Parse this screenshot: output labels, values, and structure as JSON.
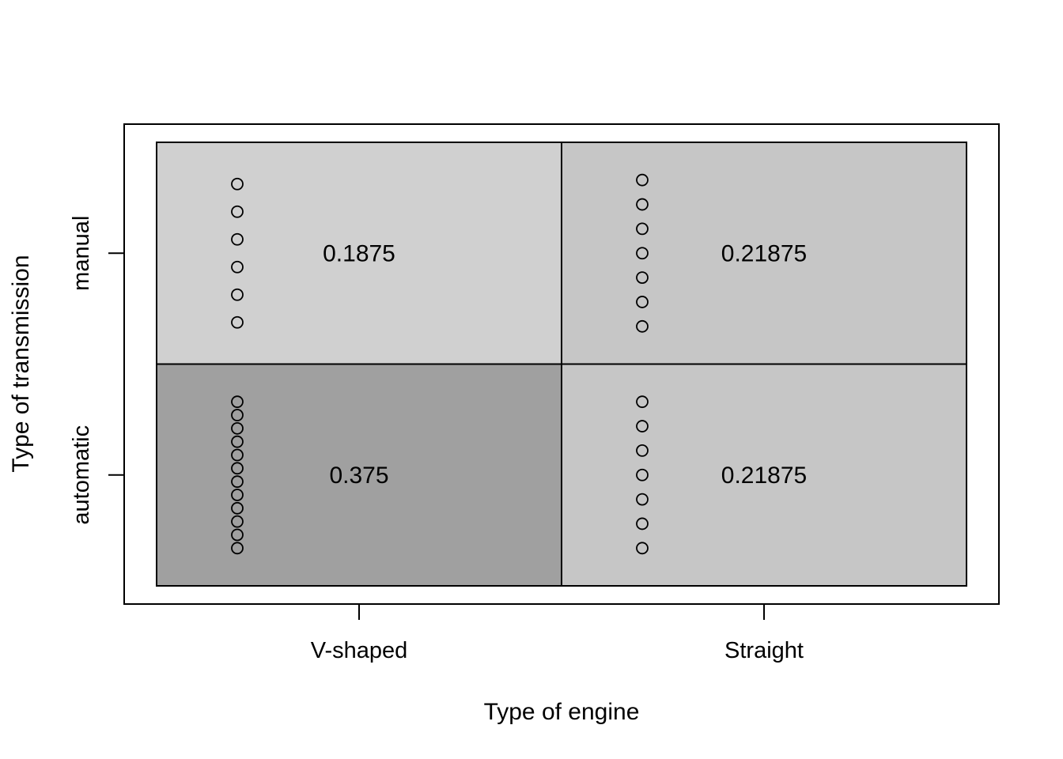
{
  "chart_data": {
    "type": "heatmap",
    "title": "",
    "xlabel": "Type of engine",
    "ylabel": "Type of transmission",
    "x_categories": [
      "V-shaped",
      "Straight"
    ],
    "y_categories": [
      "automatic",
      "manual"
    ],
    "cells": [
      {
        "x": "V-shaped",
        "y": "manual",
        "value": 0.1875,
        "label": "0.1875",
        "count": 6,
        "color": "#d0d0d0"
      },
      {
        "x": "Straight",
        "y": "manual",
        "value": 0.21875,
        "label": "0.21875",
        "count": 7,
        "color": "#c6c6c6"
      },
      {
        "x": "V-shaped",
        "y": "automatic",
        "value": 0.375,
        "label": "0.375",
        "count": 12,
        "color": "#a0a0a0"
      },
      {
        "x": "Straight",
        "y": "automatic",
        "value": 0.21875,
        "label": "0.21875",
        "count": 7,
        "color": "#c6c6c6"
      }
    ],
    "grid": false,
    "legend": "none"
  }
}
